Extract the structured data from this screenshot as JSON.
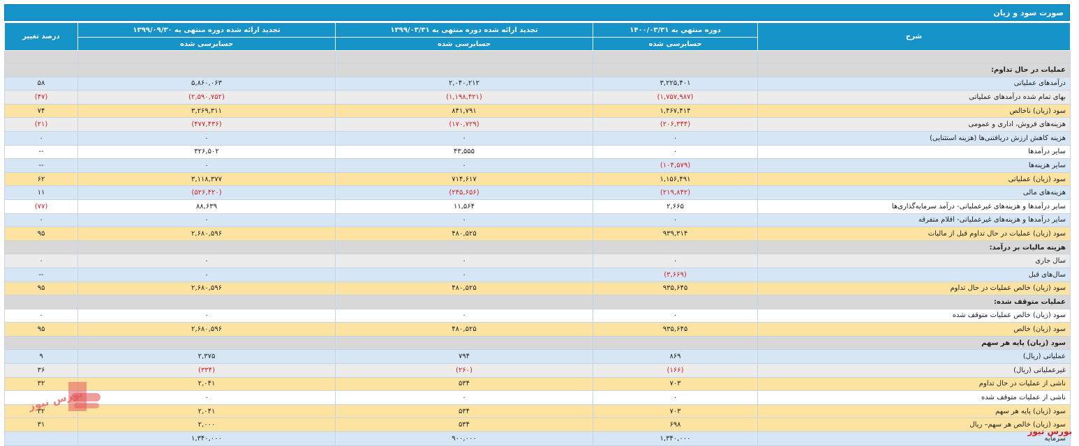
{
  "title": "صورت سود و زیان",
  "headers": {
    "desc": "شرح",
    "c1": "دوره منتهي به ۱۴۰۰/۰۳/۳۱",
    "c2": "تجدید ارائه شده دوره منتهی به ۱۳۹۹/۰۳/۳۱",
    "c3": "تجدید ارائه شده دوره منتهی به ۱۳۹۹/۰۹/۳۰",
    "change": "درصد تغییر",
    "audited": "حسابرسی شده"
  },
  "rows": [
    {
      "type": "gap"
    },
    {
      "type": "section",
      "label": "عملیات در حال تداوم:"
    },
    {
      "type": "blue",
      "label": "درآمدهای عملیاتی",
      "c1": "۳,۲۲۵,۴۰۱",
      "c2": "۲,۰۴۰,۲۱۲",
      "c3": "۵,۸۶۰,۰۶۳",
      "ch": "۵۸"
    },
    {
      "type": "gray",
      "label": "بهای تمام شده درآمدهای عملیاتی",
      "c1": "(۱,۷۵۷,۹۸۷)",
      "c2": "(۱,۱۹۸,۴۲۱)",
      "c3": "(۲,۵۹۰,۷۵۲)",
      "ch": "(۴۷)"
    },
    {
      "type": "yellow",
      "label": "سود (زیان) ناخالص",
      "c1": "۱,۴۶۷,۴۱۴",
      "c2": "۸۴۱,۷۹۱",
      "c3": "۳,۲۶۹,۳۱۱",
      "ch": "۷۴"
    },
    {
      "type": "gray",
      "label": "هزینه‌های فروش، اداری و عمومی",
      "c1": "(۲۰۶,۳۴۴)",
      "c2": "(۱۷۰,۷۲۹)",
      "c3": "(۴۷۷,۴۳۶)",
      "ch": "(۲۱)"
    },
    {
      "type": "blue",
      "label": "هزینه کاهش ارزش دریافتنی‌ها (هزینه استثنایی)",
      "c1": "۰",
      "c2": "۰",
      "c3": "۰",
      "ch": "۰"
    },
    {
      "type": "white",
      "label": "سایر درآمدها",
      "c1": "۰",
      "c2": "۴۳,۵۵۵",
      "c3": "۳۲۶,۵۰۲",
      "ch": "--"
    },
    {
      "type": "blue",
      "label": "سایر هزینه‌ها",
      "c1": "(۱۰۴,۵۷۹)",
      "c2": "۰",
      "c3": "۰",
      "ch": "--"
    },
    {
      "type": "yellow",
      "label": "سود (زیان) عملیاتی",
      "c1": "۱,۱۵۶,۴۹۱",
      "c2": "۷۱۴,۶۱۷",
      "c3": "۳,۱۱۸,۳۷۷",
      "ch": "۶۲"
    },
    {
      "type": "blue",
      "label": "هزینه‌های مالی",
      "c1": "(۲۱۹,۸۴۲)",
      "c2": "(۲۴۵,۶۵۶)",
      "c3": "(۵۲۶,۴۲۰)",
      "ch": "۱۱"
    },
    {
      "type": "white",
      "label": "سایر درآمدها و هزینه‌های غیرعملیاتی- درآمد سرمایه‌گذاری‌ها",
      "c1": "۲,۶۶۵",
      "c2": "۱۱,۵۶۴",
      "c3": "۸۸,۶۳۹",
      "ch": "(۷۷)"
    },
    {
      "type": "blue",
      "label": "سایر درآمدها و هزینه‌های غیرعملیاتی- اقلام متفرقه",
      "c1": "۰",
      "c2": "۰",
      "c3": "۰",
      "ch": "۰"
    },
    {
      "type": "yellow",
      "label": "سود (زیان) عملیات در حال تداوم قبل از مالیات",
      "c1": "۹۳۹,۳۱۴",
      "c2": "۴۸۰,۵۲۵",
      "c3": "۲,۶۸۰,۵۹۶",
      "ch": "۹۵"
    },
    {
      "type": "section",
      "label": "هزینه مالیات بر درآمد:"
    },
    {
      "type": "gray",
      "label": "سال جاری",
      "c1": "۰",
      "c2": "۰",
      "c3": "۰",
      "ch": "۰"
    },
    {
      "type": "blue",
      "label": "سال‌های قبل",
      "c1": "(۳,۶۶۹)",
      "c2": "۰",
      "c3": "۰",
      "ch": "--"
    },
    {
      "type": "yellow",
      "label": "سود (زیان) خالص عملیات در حال تداوم",
      "c1": "۹۳۵,۶۴۵",
      "c2": "۴۸۰,۵۲۵",
      "c3": "۲,۶۸۰,۵۹۶",
      "ch": "۹۵"
    },
    {
      "type": "section",
      "label": "عملیات متوقف شده:"
    },
    {
      "type": "white",
      "label": "سود (زیان) خالص عملیات متوقف شده",
      "c1": "۰",
      "c2": "۰",
      "c3": "۰",
      "ch": "۰"
    },
    {
      "type": "yellow",
      "label": "سود (زیان) خالص",
      "c1": "۹۳۵,۶۴۵",
      "c2": "۴۸۰,۵۲۵",
      "c3": "۲,۶۸۰,۵۹۶",
      "ch": "۹۵"
    },
    {
      "type": "section",
      "label": "سود (زیان) پایه هر سهم"
    },
    {
      "type": "blue",
      "label": "عملیاتی (ریال)",
      "c1": "۸۶۹",
      "c2": "۷۹۴",
      "c3": "۲,۳۷۵",
      "ch": "۹"
    },
    {
      "type": "gray",
      "label": "غیرعملیاتی (ریال)",
      "c1": "(۱۶۶)",
      "c2": "(۲۶۰)",
      "c3": "(۳۳۴)",
      "ch": "۳۶"
    },
    {
      "type": "yellow",
      "label": "ناشی از عملیات در حال تداوم",
      "c1": "۷۰۳",
      "c2": "۵۳۴",
      "c3": "۲,۰۴۱",
      "ch": "۳۲"
    },
    {
      "type": "white",
      "label": "ناشی از عملیات متوقف شده",
      "c1": "۰",
      "c2": "۰",
      "c3": "۰",
      "ch": ""
    },
    {
      "type": "yellow",
      "label": "سود (زیان) پایه هر سهم",
      "c1": "۷۰۳",
      "c2": "۵۳۴",
      "c3": "۲,۰۴۱",
      "ch": "۳۲"
    },
    {
      "type": "yellow",
      "label": "سود (زیان) خالص هر سهم– ریال",
      "c1": "۶۹۸",
      "c2": "۵۳۴",
      "c3": "۲,۰۰۰",
      "ch": "۳۱"
    },
    {
      "type": "blue",
      "label": "سرمایه",
      "c1": "۱,۳۴۰,۰۰۰",
      "c2": "۹۰۰,۰۰۰",
      "c3": "۱,۳۴۰,۰۰۰",
      "ch": ""
    }
  ],
  "watermark": "بورس نیوز",
  "footer_brand": "بورس نیوز",
  "colors": {
    "header": "#1693c9",
    "yellow": "#fde3a1",
    "blue": "#d6e6f5",
    "negative": "#d21f1f"
  }
}
